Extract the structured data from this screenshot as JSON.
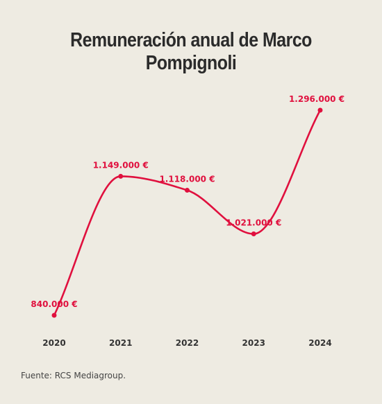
{
  "chart_data": {
    "type": "line",
    "title": "Remuneración anual de Marco Pompignoli",
    "x": [
      "2020",
      "2021",
      "2022",
      "2023",
      "2024"
    ],
    "series": [
      {
        "values": [
          840000,
          1149000,
          1118000,
          1021000,
          1296000
        ],
        "labels": [
          "840.000 €",
          "1.149.000 €",
          "1.118.000 €",
          "1.021.000 €",
          "1.296.000 €"
        ]
      }
    ],
    "xlabel": "",
    "ylabel": "",
    "grid": false,
    "line_color": "#e0103e"
  },
  "source": "Fuente: RCS Mediagroup."
}
